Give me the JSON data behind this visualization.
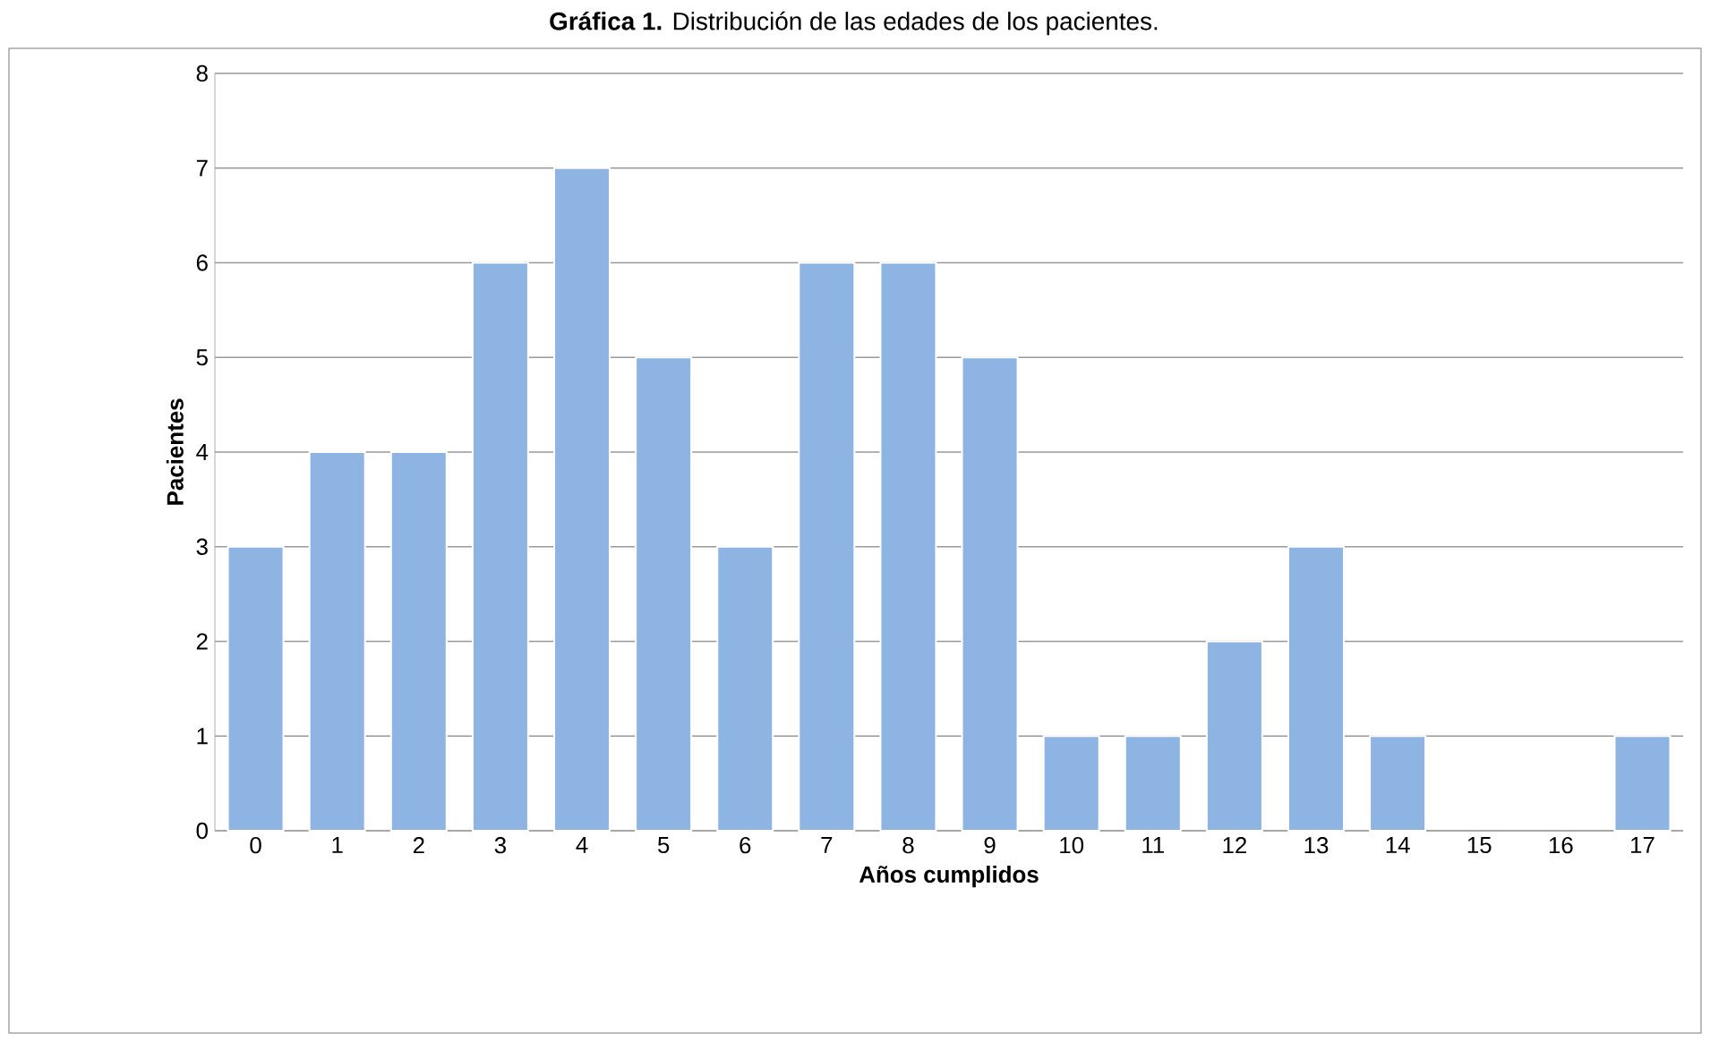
{
  "chart_data": {
    "type": "bar",
    "title": "**Gráfica 1.** Distribución de las edades de los pacientes.",
    "xlabel": "Años cumplidos",
    "ylabel": "Pacientes",
    "categories": [
      "0",
      "1",
      "2",
      "3",
      "4",
      "5",
      "6",
      "7",
      "8",
      "9",
      "10",
      "11",
      "12",
      "13",
      "14",
      "15",
      "16",
      "17"
    ],
    "values": [
      3,
      4,
      4,
      6,
      7,
      5,
      3,
      6,
      6,
      5,
      1,
      1,
      2,
      3,
      1,
      0,
      0,
      1
    ],
    "color": "#8eb4e3",
    "ylim": [
      0,
      8
    ],
    "yticks": [
      0,
      1,
      2,
      3,
      4,
      5,
      6,
      7,
      8
    ],
    "grid": "y"
  }
}
